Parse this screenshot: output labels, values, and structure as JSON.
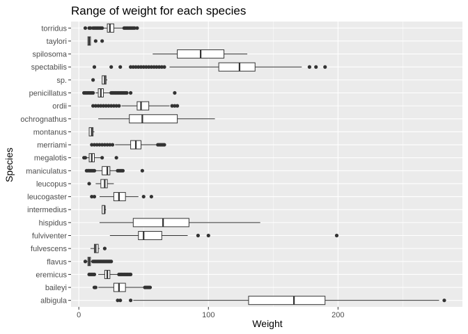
{
  "chart_data": {
    "type": "boxplot",
    "title": "Range of weight for each species",
    "xlabel": "Weight",
    "ylabel": "Species",
    "xlim": [
      -6,
      296
    ],
    "xticks": [
      0,
      100,
      200
    ],
    "grid": true,
    "orientation": "horizontal",
    "colors": {
      "panel": "#ebebeb",
      "grid_major": "#ffffff",
      "box_fill": "#ffffff",
      "box_stroke": "#333333",
      "outlier": "#333333"
    },
    "species": [
      {
        "name": "torridus",
        "whisker_low": 10,
        "q1": 22,
        "median": 24,
        "q3": 27,
        "whisker_high": 34,
        "outliers": [
          5,
          8,
          9,
          11,
          12,
          13,
          14,
          15,
          16,
          17,
          18,
          35,
          36,
          37,
          38,
          39,
          40,
          41,
          42,
          43,
          45
        ]
      },
      {
        "name": "taylori",
        "whisker_low": 7,
        "q1": 7,
        "median": 8,
        "q3": 9,
        "whisker_high": 9,
        "outliers": [
          13,
          18
        ]
      },
      {
        "name": "spilosoma",
        "whisker_low": 57,
        "q1": 76,
        "median": 94,
        "q3": 112,
        "whisker_high": 130,
        "outliers": []
      },
      {
        "name": "spectabilis",
        "whisker_low": 70,
        "q1": 108,
        "median": 124,
        "q3": 136,
        "whisker_high": 172,
        "outliers": [
          12,
          25,
          32,
          40,
          42,
          44,
          46,
          48,
          50,
          52,
          54,
          56,
          58,
          60,
          62,
          64,
          66,
          178,
          183,
          190
        ]
      },
      {
        "name": "sp.",
        "whisker_low": 18,
        "q1": 18,
        "median": 20,
        "q3": 21,
        "whisker_high": 22,
        "outliers": [
          11
        ]
      },
      {
        "name": "penicillatus",
        "whisker_low": 13,
        "q1": 15,
        "median": 17,
        "q3": 19,
        "whisker_high": 24,
        "outliers": [
          4,
          5,
          6,
          7,
          8,
          9,
          10,
          11,
          25,
          26,
          27,
          28,
          29,
          30,
          31,
          32,
          33,
          34,
          35,
          36,
          37,
          40,
          74
        ]
      },
      {
        "name": "ordii",
        "whisker_low": 33,
        "q1": 45,
        "median": 48,
        "q3": 54,
        "whisker_high": 70,
        "outliers": [
          11,
          13,
          15,
          17,
          19,
          21,
          23,
          25,
          27,
          29,
          31,
          72,
          74,
          76
        ]
      },
      {
        "name": "ochrognathus",
        "whisker_low": 15,
        "q1": 39,
        "median": 49,
        "q3": 76,
        "whisker_high": 105,
        "outliers": []
      },
      {
        "name": "montanus",
        "whisker_low": 8,
        "q1": 8,
        "median": 10,
        "q3": 11,
        "whisker_high": 12,
        "outliers": []
      },
      {
        "name": "merriami",
        "whisker_low": 28,
        "q1": 40,
        "median": 44,
        "q3": 48,
        "whisker_high": 60,
        "outliers": [
          10,
          12,
          14,
          16,
          18,
          20,
          22,
          24,
          26,
          61,
          62,
          63,
          64,
          65,
          66
        ]
      },
      {
        "name": "megalotis",
        "whisker_low": 6,
        "q1": 8,
        "median": 10,
        "q3": 12,
        "whisker_high": 17,
        "outliers": [
          4,
          5,
          18,
          29
        ]
      },
      {
        "name": "maniculatus",
        "whisker_low": 13,
        "q1": 18,
        "median": 22,
        "q3": 24,
        "whisker_high": 29,
        "outliers": [
          6,
          7,
          8,
          9,
          10,
          11,
          12,
          30,
          31,
          32,
          33,
          34,
          49
        ]
      },
      {
        "name": "leucopus",
        "whisker_low": 13,
        "q1": 17,
        "median": 20,
        "q3": 22,
        "whisker_high": 27,
        "outliers": [
          8
        ]
      },
      {
        "name": "leucogaster",
        "whisker_low": 16,
        "q1": 27,
        "median": 31,
        "q3": 36,
        "whisker_high": 46,
        "outliers": [
          10,
          12,
          50,
          56
        ]
      },
      {
        "name": "intermedius",
        "whisker_low": 18,
        "q1": 18,
        "median": 20,
        "q3": 20,
        "whisker_high": 21,
        "outliers": []
      },
      {
        "name": "hispidus",
        "whisker_low": 16,
        "q1": 42,
        "median": 65,
        "q3": 85,
        "whisker_high": 140,
        "outliers": []
      },
      {
        "name": "fulviventer",
        "whisker_low": 24,
        "q1": 46,
        "median": 50,
        "q3": 64,
        "whisker_high": 84,
        "outliers": [
          92,
          100,
          199
        ]
      },
      {
        "name": "fulvescens",
        "whisker_low": 9,
        "q1": 12,
        "median": 13,
        "q3": 15,
        "whisker_high": 16,
        "outliers": [
          20
        ]
      },
      {
        "name": "flavus",
        "whisker_low": 6,
        "q1": 7,
        "median": 8,
        "q3": 9,
        "whisker_high": 10,
        "outliers": [
          5,
          11,
          12,
          13,
          14,
          15,
          16,
          17,
          18,
          19,
          20,
          21,
          22,
          23,
          24,
          25
        ]
      },
      {
        "name": "eremicus",
        "whisker_low": 15,
        "q1": 20,
        "median": 22,
        "q3": 24,
        "whisker_high": 30,
        "outliers": [
          8,
          9,
          10,
          11,
          12,
          31,
          32,
          33,
          34,
          35,
          36,
          37,
          38,
          39,
          40
        ]
      },
      {
        "name": "baileyi",
        "whisker_low": 15,
        "q1": 27,
        "median": 31,
        "q3": 36,
        "whisker_high": 50,
        "outliers": [
          12,
          13,
          51,
          52,
          53,
          54,
          55
        ]
      },
      {
        "name": "albigula",
        "whisker_low": 42,
        "q1": 131,
        "median": 166,
        "q3": 190,
        "whisker_high": 278,
        "outliers": [
          30,
          32,
          40,
          282
        ]
      }
    ]
  }
}
